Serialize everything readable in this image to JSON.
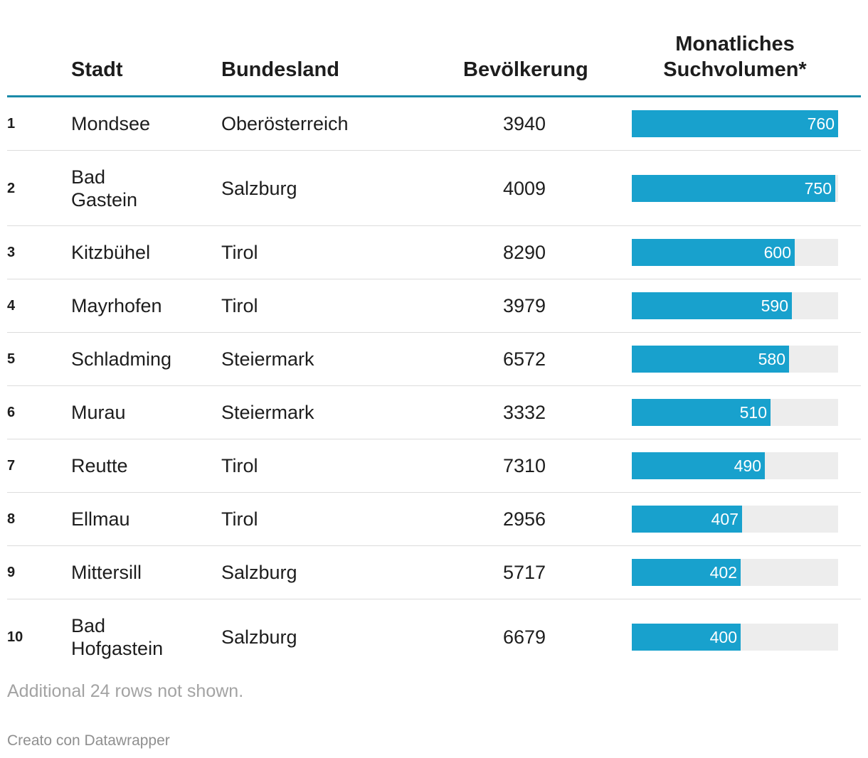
{
  "chart_data": {
    "type": "table",
    "columns": [
      "",
      "Stadt",
      "Bundesland",
      "Bevölkerung",
      "Monatliches Suchvolumen*"
    ],
    "header": {
      "stadt": "Stadt",
      "bundesland": "Bundesland",
      "bevoelkerung": "Bevölkerung",
      "suchvolumen_line1": "Monatliches",
      "suchvolumen_line2": "Suchvolumen*"
    },
    "bar_max": 760,
    "rows": [
      {
        "rank": "1",
        "stadt": [
          "Mondsee"
        ],
        "bundesland": "Oberösterreich",
        "bevoelkerung": 3940,
        "suchvolumen": 760
      },
      {
        "rank": "2",
        "stadt": [
          "Bad",
          "Gastein"
        ],
        "bundesland": "Salzburg",
        "bevoelkerung": 4009,
        "suchvolumen": 750
      },
      {
        "rank": "3",
        "stadt": [
          "Kitzbühel"
        ],
        "bundesland": "Tirol",
        "bevoelkerung": 8290,
        "suchvolumen": 600
      },
      {
        "rank": "4",
        "stadt": [
          "Mayrhofen"
        ],
        "bundesland": "Tirol",
        "bevoelkerung": 3979,
        "suchvolumen": 590
      },
      {
        "rank": "5",
        "stadt": [
          "Schladming"
        ],
        "bundesland": "Steiermark",
        "bevoelkerung": 6572,
        "suchvolumen": 580
      },
      {
        "rank": "6",
        "stadt": [
          "Murau"
        ],
        "bundesland": "Steiermark",
        "bevoelkerung": 3332,
        "suchvolumen": 510
      },
      {
        "rank": "7",
        "stadt": [
          "Reutte"
        ],
        "bundesland": "Tirol",
        "bevoelkerung": 7310,
        "suchvolumen": 490
      },
      {
        "rank": "8",
        "stadt": [
          "Ellmau"
        ],
        "bundesland": "Tirol",
        "bevoelkerung": 2956,
        "suchvolumen": 407
      },
      {
        "rank": "9",
        "stadt": [
          "Mittersill"
        ],
        "bundesland": "Salzburg",
        "bevoelkerung": 5717,
        "suchvolumen": 402
      },
      {
        "rank": "10",
        "stadt": [
          "Bad",
          "Hofgastein"
        ],
        "bundesland": "Salzburg",
        "bevoelkerung": 6679,
        "suchvolumen": 400
      }
    ],
    "note": "Additional 24 rows not shown.",
    "credit": "Creato con Datawrapper"
  },
  "colors": {
    "bar": "#18a1cd",
    "track": "#ededed",
    "header_rule": "#1a8aa9"
  }
}
